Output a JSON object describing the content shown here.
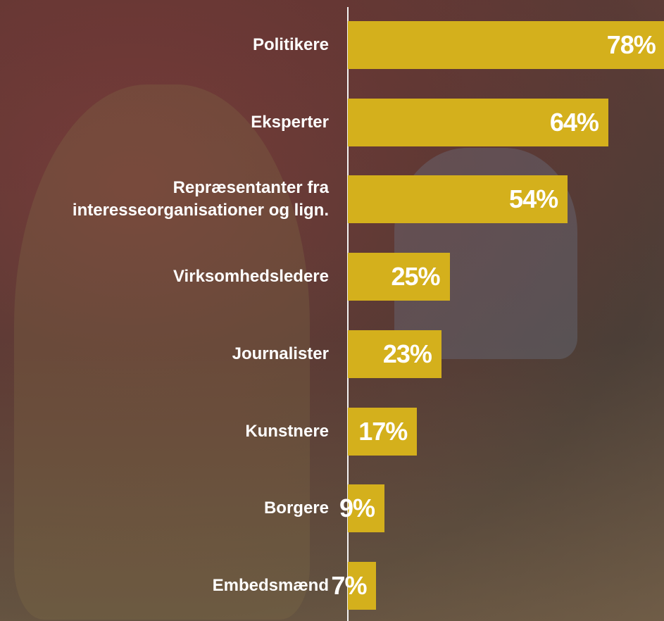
{
  "chart_data": {
    "type": "bar",
    "orientation": "horizontal",
    "categories": [
      "Politikere",
      "Eksperter",
      "Repræsentanter fra interesseorganisationer og lign.",
      "Virksomhedsledere",
      "Journalister",
      "Kunstnere",
      "Borgere",
      "Embedsmænd"
    ],
    "values": [
      78,
      64,
      54,
      25,
      23,
      17,
      9,
      7
    ],
    "value_labels": [
      "78%",
      "64%",
      "54%",
      "25%",
      "23%",
      "17%",
      "9%",
      "7%"
    ],
    "color": "#d4b01c"
  }
}
